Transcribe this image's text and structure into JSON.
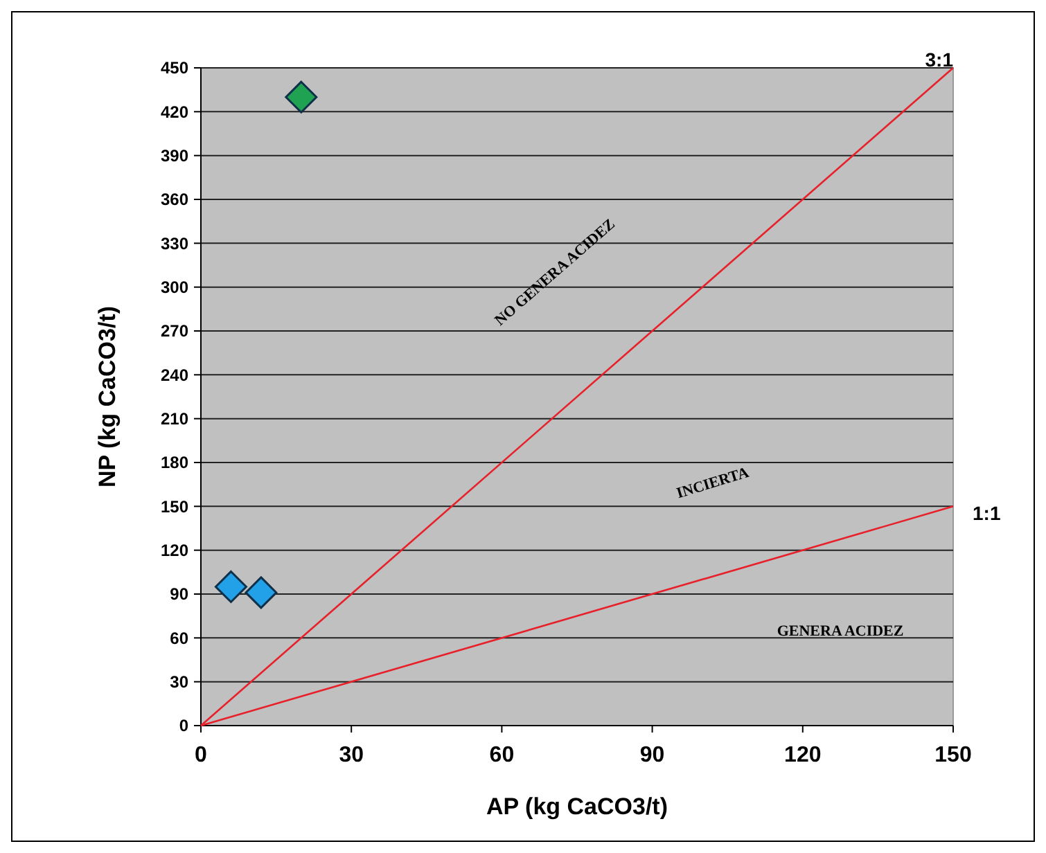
{
  "chart_data": {
    "type": "scatter",
    "xlabel": "AP (kg CaCO3/t)",
    "ylabel": "NP (kg CaCO3/t)",
    "xlim": [
      0,
      150
    ],
    "xticks": [
      0,
      30,
      60,
      90,
      120,
      150
    ],
    "ylim": [
      0,
      450
    ],
    "yticks": [
      0,
      30,
      60,
      90,
      120,
      150,
      180,
      210,
      240,
      270,
      300,
      330,
      360,
      390,
      420,
      450
    ],
    "grid": "y",
    "marker": "diamond",
    "series": [
      {
        "color": "#22a0e8",
        "x": [
          6,
          12
        ],
        "values": [
          95,
          91
        ]
      },
      {
        "color": "#1fa352",
        "x": [
          20
        ],
        "values": [
          430
        ]
      },
      {
        "type": "line",
        "color": "#e8202a",
        "x": [
          0,
          150
        ],
        "values": [
          0,
          450
        ],
        "marker": "none"
      },
      {
        "type": "line",
        "color": "#e8202a",
        "x": [
          0,
          150
        ],
        "values": [
          0,
          150
        ],
        "marker": "none"
      }
    ],
    "annotations": [
      {
        "text": "3:1",
        "x": 150,
        "y": 450
      },
      {
        "text": "1:1",
        "x": 150,
        "y": 150
      },
      "NO GENERA ACIDEZ",
      "INCIERTA",
      "GENERA ACIDEZ"
    ]
  }
}
